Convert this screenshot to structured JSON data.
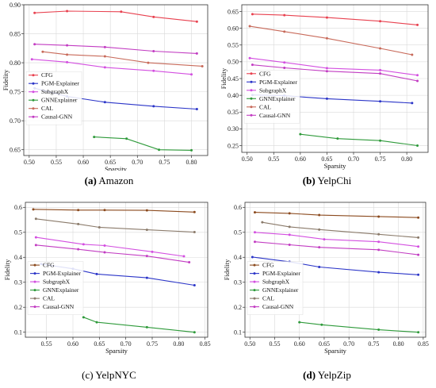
{
  "colors": {
    "CFG": "#e8414f",
    "PGM-Explainer": "#2b35c8",
    "SubgraphX": "#d34fe0",
    "GNNExplainer": "#2e9a3a",
    "CAL": "#c86a5a",
    "Causal-GNN": "#c23cc2",
    "CFG_b": "#8b4a1e",
    "CAL_b": "#8a7a6a"
  },
  "chart_data": [
    {
      "type": "line",
      "caption_label": "(a)",
      "caption_name": "Amazon",
      "xlabel": "Sparsity",
      "ylabel": "Fidelity",
      "xlim": [
        0.49,
        0.83
      ],
      "ylim": [
        0.64,
        0.9
      ],
      "xticks": [
        "0.50",
        "0.55",
        "0.60",
        "0.65",
        "0.70",
        "0.75",
        "0.80"
      ],
      "xtick_values": [
        0.5,
        0.55,
        0.6,
        0.65,
        0.7,
        0.75,
        0.8
      ],
      "yticks": [
        "0.65",
        "0.70",
        "0.75",
        "0.80",
        "0.85",
        "0.90"
      ],
      "ytick_values": [
        0.65,
        0.7,
        0.75,
        0.8,
        0.85,
        0.9
      ],
      "grid": true,
      "legend_position": "bottom-left",
      "series": [
        {
          "name": "CFG",
          "color_key": "CFG",
          "x": [
            0.51,
            0.57,
            0.67,
            0.73,
            0.81
          ],
          "y": [
            0.886,
            0.889,
            0.888,
            0.879,
            0.871
          ]
        },
        {
          "name": "PGM-Explainer",
          "color_key": "PGM-Explainer",
          "x": [
            0.51,
            0.57,
            0.64,
            0.73,
            0.81
          ],
          "y": [
            0.756,
            0.742,
            0.732,
            0.725,
            0.72
          ]
        },
        {
          "name": "SubgraphX",
          "color_key": "SubgraphX",
          "x": [
            0.505,
            0.57,
            0.64,
            0.73,
            0.8
          ],
          "y": [
            0.806,
            0.801,
            0.792,
            0.786,
            0.78
          ]
        },
        {
          "name": "GNNExplainer",
          "color_key": "GNNExplainer",
          "x": [
            0.62,
            0.68,
            0.74,
            0.8
          ],
          "y": [
            0.672,
            0.669,
            0.65,
            0.649
          ]
        },
        {
          "name": "CAL",
          "color_key": "CAL",
          "x": [
            0.525,
            0.57,
            0.64,
            0.72,
            0.82
          ],
          "y": [
            0.819,
            0.814,
            0.811,
            0.8,
            0.794
          ]
        },
        {
          "name": "Causal-GNN",
          "color_key": "Causal-GNN",
          "x": [
            0.51,
            0.57,
            0.64,
            0.73,
            0.81
          ],
          "y": [
            0.832,
            0.83,
            0.827,
            0.82,
            0.816
          ]
        }
      ]
    },
    {
      "type": "line",
      "caption_label": "(b)",
      "caption_name": "YelpChi",
      "xlabel": "Sparsity",
      "ylabel": "Fidelity",
      "xlim": [
        0.49,
        0.84
      ],
      "ylim": [
        0.23,
        0.67
      ],
      "xticks": [
        "0.50",
        "0.55",
        "0.60",
        "0.65",
        "0.70",
        "0.75",
        "0.80"
      ],
      "xtick_values": [
        0.5,
        0.55,
        0.6,
        0.65,
        0.7,
        0.75,
        0.8
      ],
      "yticks": [
        "0.25",
        "0.30",
        "0.35",
        "0.40",
        "0.45",
        "0.50",
        "0.55",
        "0.60",
        "0.65"
      ],
      "ytick_values": [
        0.25,
        0.3,
        0.35,
        0.4,
        0.45,
        0.5,
        0.55,
        0.6,
        0.65
      ],
      "grid": true,
      "legend_position": "bottom-left",
      "series": [
        {
          "name": "CFG",
          "color_key": "CFG",
          "x": [
            0.51,
            0.57,
            0.65,
            0.75,
            0.82
          ],
          "y": [
            0.642,
            0.639,
            0.632,
            0.621,
            0.61
          ]
        },
        {
          "name": "PGM-Explainer",
          "color_key": "PGM-Explainer",
          "x": [
            0.51,
            0.57,
            0.65,
            0.75,
            0.81
          ],
          "y": [
            0.401,
            0.399,
            0.39,
            0.382,
            0.377
          ]
        },
        {
          "name": "SubgraphX",
          "color_key": "SubgraphX",
          "x": [
            0.505,
            0.57,
            0.65,
            0.75,
            0.82
          ],
          "y": [
            0.511,
            0.498,
            0.481,
            0.475,
            0.46
          ]
        },
        {
          "name": "GNNExplainer",
          "color_key": "GNNExplainer",
          "x": [
            0.6,
            0.67,
            0.75,
            0.82
          ],
          "y": [
            0.284,
            0.271,
            0.265,
            0.25
          ]
        },
        {
          "name": "CAL",
          "color_key": "CAL",
          "x": [
            0.505,
            0.57,
            0.65,
            0.75,
            0.81
          ],
          "y": [
            0.606,
            0.59,
            0.57,
            0.54,
            0.521
          ]
        },
        {
          "name": "Causal-GNN",
          "color_key": "Causal-GNN",
          "x": [
            0.51,
            0.57,
            0.65,
            0.75,
            0.82
          ],
          "y": [
            0.491,
            0.482,
            0.472,
            0.465,
            0.443
          ]
        }
      ]
    },
    {
      "type": "line",
      "caption_label": "(c)",
      "caption_name": "YelpNYC",
      "xlabel": "Sparsity",
      "ylabel": "Fidelity",
      "xlim": [
        0.51,
        0.855
      ],
      "ylim": [
        0.08,
        0.62
      ],
      "xticks": [
        "0.55",
        "0.60",
        "0.65",
        "0.70",
        "0.75",
        "0.80",
        "0.85"
      ],
      "xtick_values": [
        0.55,
        0.6,
        0.65,
        0.7,
        0.75,
        0.8,
        0.85
      ],
      "yticks": [
        "0.1",
        "0.2",
        "0.3",
        "0.4",
        "0.5",
        "0.6"
      ],
      "ytick_values": [
        0.1,
        0.2,
        0.3,
        0.4,
        0.5,
        0.6
      ],
      "grid": true,
      "legend_position": "bottom-left",
      "series": [
        {
          "name": "CFG",
          "color_key": "CFG_b",
          "x": [
            0.525,
            0.61,
            0.66,
            0.74,
            0.83
          ],
          "y": [
            0.592,
            0.589,
            0.589,
            0.588,
            0.581
          ]
        },
        {
          "name": "PGM-Explainer",
          "color_key": "PGM-Explainer",
          "x": [
            0.54,
            0.6,
            0.645,
            0.74,
            0.83
          ],
          "y": [
            0.373,
            0.354,
            0.333,
            0.318,
            0.288
          ]
        },
        {
          "name": "SubgraphX",
          "color_key": "SubgraphX",
          "x": [
            0.53,
            0.62,
            0.66,
            0.75,
            0.81
          ],
          "y": [
            0.48,
            0.452,
            0.447,
            0.422,
            0.404
          ]
        },
        {
          "name": "GNNExplainer",
          "color_key": "GNNExplainer",
          "x": [
            0.62,
            0.645,
            0.74,
            0.83
          ],
          "y": [
            0.16,
            0.14,
            0.12,
            0.1
          ]
        },
        {
          "name": "CAL",
          "color_key": "CAL_b",
          "x": [
            0.53,
            0.61,
            0.65,
            0.74,
            0.83
          ],
          "y": [
            0.554,
            0.533,
            0.52,
            0.51,
            0.501
          ]
        },
        {
          "name": "Causal-GNN",
          "color_key": "Causal-GNN",
          "x": [
            0.53,
            0.61,
            0.66,
            0.74,
            0.82
          ],
          "y": [
            0.449,
            0.432,
            0.42,
            0.405,
            0.38
          ]
        }
      ]
    },
    {
      "type": "line",
      "caption_label": "(d)",
      "caption_name": "YelpZip",
      "xlabel": "Sparsity",
      "ylabel": "Fidelity",
      "xlim": [
        0.49,
        0.855
      ],
      "ylim": [
        0.08,
        0.62
      ],
      "xticks": [
        "0.50",
        "0.55",
        "0.60",
        "0.65",
        "0.70",
        "0.75",
        "0.80",
        "0.85"
      ],
      "xtick_values": [
        0.5,
        0.55,
        0.6,
        0.65,
        0.7,
        0.75,
        0.8,
        0.85
      ],
      "yticks": [
        "0.1",
        "0.2",
        "0.3",
        "0.4",
        "0.5",
        "0.6"
      ],
      "ytick_values": [
        0.1,
        0.2,
        0.3,
        0.4,
        0.5,
        0.6
      ],
      "grid": true,
      "legend_position": "bottom-left",
      "series": [
        {
          "name": "CFG",
          "color_key": "CFG_b",
          "x": [
            0.51,
            0.58,
            0.64,
            0.76,
            0.84
          ],
          "y": [
            0.58,
            0.576,
            0.569,
            0.563,
            0.559
          ]
        },
        {
          "name": "PGM-Explainer",
          "color_key": "PGM-Explainer",
          "x": [
            0.505,
            0.58,
            0.64,
            0.76,
            0.84
          ],
          "y": [
            0.401,
            0.382,
            0.361,
            0.34,
            0.33
          ]
        },
        {
          "name": "SubgraphX",
          "color_key": "SubgraphX",
          "x": [
            0.51,
            0.58,
            0.65,
            0.76,
            0.84
          ],
          "y": [
            0.5,
            0.49,
            0.472,
            0.462,
            0.443
          ]
        },
        {
          "name": "GNNExplainer",
          "color_key": "GNNExplainer",
          "x": [
            0.6,
            0.645,
            0.76,
            0.84
          ],
          "y": [
            0.14,
            0.13,
            0.11,
            0.1
          ]
        },
        {
          "name": "CAL",
          "color_key": "CAL_b",
          "x": [
            0.525,
            0.58,
            0.64,
            0.76,
            0.84
          ],
          "y": [
            0.54,
            0.522,
            0.511,
            0.492,
            0.479
          ]
        },
        {
          "name": "Causal-GNN",
          "color_key": "Causal-GNN",
          "x": [
            0.51,
            0.58,
            0.64,
            0.76,
            0.84
          ],
          "y": [
            0.462,
            0.45,
            0.44,
            0.43,
            0.41
          ]
        }
      ]
    }
  ]
}
